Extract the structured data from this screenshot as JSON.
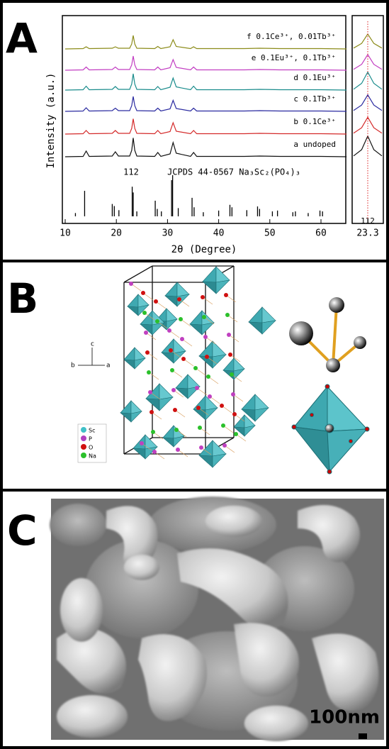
{
  "panel_labels": [
    "A",
    "B",
    "C"
  ],
  "chart_data": {
    "type": "line",
    "x_label": "2θ (Degree)",
    "y_label": "Intensity (a.u.)",
    "xlim": [
      10,
      65
    ],
    "xticks": [
      10,
      20,
      30,
      40,
      50,
      60
    ],
    "x": [
      10,
      13.5,
      14.1,
      14.7,
      19.2,
      19.8,
      20.4,
      22.6,
      23.0,
      23.3,
      23.6,
      24.0,
      27.5,
      28.1,
      28.7,
      30.5,
      31.1,
      31.7,
      34.5,
      35.1,
      35.7,
      42,
      45,
      48,
      52,
      55,
      60,
      65
    ],
    "series": [
      {
        "name": "a undoped",
        "color": "#111111",
        "values": [
          2,
          3,
          18,
          3,
          4,
          16,
          4,
          4,
          20,
          55,
          20,
          4,
          3,
          14,
          3,
          10,
          42,
          12,
          3,
          14,
          3,
          3,
          3,
          4,
          3,
          3,
          3,
          2
        ]
      },
      {
        "name": "b 0.1Ce³⁺",
        "color": "#d42a2a",
        "values": [
          2,
          3,
          12,
          3,
          4,
          12,
          4,
          4,
          18,
          45,
          18,
          4,
          3,
          12,
          3,
          9,
          34,
          10,
          3,
          12,
          3,
          3,
          3,
          4,
          3,
          3,
          3,
          2
        ]
      },
      {
        "name": "c 0.1Tb³⁺",
        "color": "#2a2aa0",
        "values": [
          2,
          3,
          12,
          3,
          4,
          11,
          4,
          4,
          18,
          44,
          18,
          4,
          3,
          11,
          3,
          9,
          33,
          10,
          3,
          11,
          3,
          3,
          3,
          4,
          3,
          3,
          3,
          2
        ]
      },
      {
        "name": "d 0.1Eu³⁺",
        "color": "#1a8c8c",
        "values": [
          2,
          3,
          13,
          3,
          4,
          12,
          4,
          4,
          19,
          48,
          19,
          4,
          3,
          12,
          3,
          10,
          36,
          11,
          3,
          13,
          3,
          3,
          3,
          4,
          3,
          3,
          3,
          2
        ]
      },
      {
        "name": "e 0.1Eu³⁺, 0.1Tb³⁺",
        "color": "#c23ec2",
        "values": [
          2,
          3,
          11,
          3,
          4,
          11,
          4,
          4,
          17,
          42,
          17,
          4,
          3,
          11,
          3,
          9,
          32,
          10,
          3,
          11,
          3,
          3,
          3,
          4,
          3,
          3,
          3,
          2
        ]
      },
      {
        "name": "f 0.1Ce³⁺, 0.01Tb³⁺",
        "color": "#8c8c1a",
        "values": [
          2,
          3,
          8,
          3,
          4,
          8,
          4,
          4,
          16,
          40,
          16,
          4,
          3,
          9,
          3,
          8,
          28,
          9,
          3,
          8,
          3,
          3,
          3,
          4,
          3,
          3,
          3,
          2
        ]
      }
    ],
    "reference": {
      "label": "JCPDS 44-0567  Na₃Sc₂(PO₄)₃",
      "peak_label": "112",
      "x": [
        12,
        13.8,
        19.2,
        19.6,
        20.5,
        23.1,
        23.3,
        24.0,
        27.6,
        28.0,
        28.8,
        30.8,
        31.0,
        32.1,
        34.8,
        35.2,
        37.0,
        40.0,
        42.2,
        42.6,
        45.5,
        47.6,
        48.0,
        50.5,
        51.5,
        54.5,
        55.0,
        57.5,
        59.8,
        60.3
      ],
      "values": [
        8,
        62,
        30,
        25,
        15,
        72,
        58,
        12,
        38,
        18,
        12,
        88,
        100,
        20,
        45,
        22,
        10,
        14,
        28,
        22,
        15,
        24,
        18,
        12,
        14,
        10,
        12,
        8,
        14,
        12
      ]
    },
    "inset": {
      "xlim": [
        22.6,
        24.0
      ],
      "xticks": [
        23.3
      ],
      "peak_label": "112"
    }
  },
  "structure": {
    "axes": [
      "c",
      "b",
      "a"
    ],
    "legend": [
      "Sc",
      "P",
      "O",
      "Na"
    ]
  },
  "micrograph": {
    "scale_bar": "100nm"
  }
}
